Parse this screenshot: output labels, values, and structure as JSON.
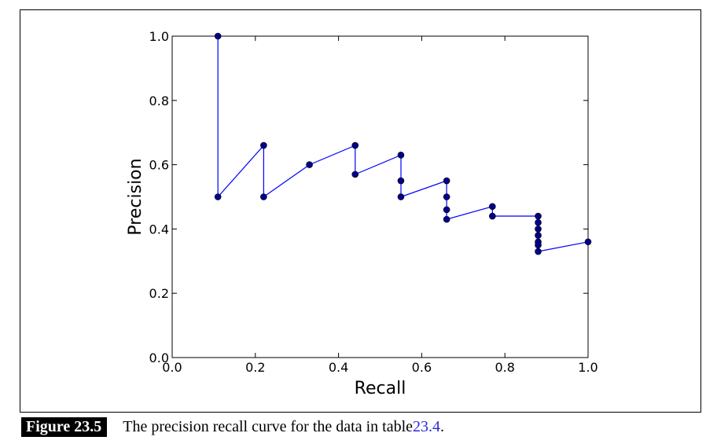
{
  "chart_data": {
    "type": "line",
    "title": "",
    "xlabel": "Recall",
    "ylabel": "Precision",
    "xlim": [
      0.0,
      1.0
    ],
    "ylim": [
      0.0,
      1.0
    ],
    "xticks": [
      0.0,
      0.2,
      0.4,
      0.6,
      0.8,
      1.0
    ],
    "xtick_labels": [
      "0.0",
      "0.2",
      "0.4",
      "0.6",
      "0.8",
      "1.0"
    ],
    "yticks": [
      0.0,
      0.2,
      0.4,
      0.6,
      0.8,
      1.0
    ],
    "ytick_labels": [
      "0.0",
      "0.2",
      "0.4",
      "0.6",
      "0.8",
      "1.0"
    ],
    "grid": false,
    "series": [
      {
        "name": "precision-recall",
        "color": "#0000ff",
        "marker_color": "#00008b",
        "x": [
          0.11,
          0.11,
          0.22,
          0.22,
          0.33,
          0.44,
          0.44,
          0.55,
          0.55,
          0.55,
          0.66,
          0.66,
          0.66,
          0.66,
          0.77,
          0.77,
          0.88,
          0.88,
          0.88,
          0.88,
          0.88,
          0.88,
          0.88,
          1.0
        ],
        "y": [
          1.0,
          0.5,
          0.66,
          0.5,
          0.6,
          0.66,
          0.57,
          0.63,
          0.55,
          0.5,
          0.55,
          0.5,
          0.46,
          0.43,
          0.47,
          0.44,
          0.44,
          0.42,
          0.4,
          0.38,
          0.36,
          0.35,
          0.33,
          0.36
        ]
      }
    ]
  },
  "caption": {
    "label": "Figure 23.5",
    "text_before": "The precision recall curve for the data in table ",
    "ref": "23.4",
    "text_after": "."
  }
}
